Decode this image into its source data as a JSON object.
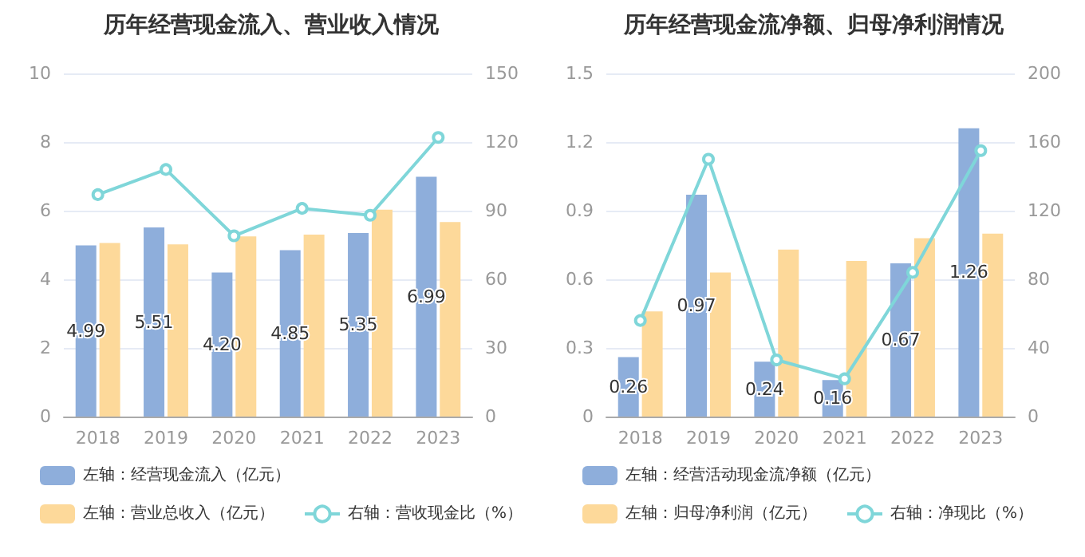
{
  "chart_data": [
    {
      "type": "bar",
      "title": "历年经营现金流入、营业收入情况",
      "categories": [
        "2018",
        "2019",
        "2020",
        "2021",
        "2022",
        "2023"
      ],
      "series": [
        {
          "name": "左轴：经营现金流入（亿元）",
          "color": "#8eaedb",
          "values": [
            4.99,
            5.51,
            4.2,
            4.85,
            5.35,
            6.99
          ],
          "value_labels": [
            "4.99",
            "5.51",
            "4.20",
            "4.85",
            "5.35",
            "6.99"
          ]
        },
        {
          "name": "左轴：营业总收入（亿元）",
          "color": "#fdd99a",
          "values": [
            5.06,
            5.02,
            5.25,
            5.3,
            6.03,
            5.67
          ]
        },
        {
          "name": "右轴：营收现金比（%）",
          "color": "#7fd6d9",
          "type": "line",
          "axis": "y2",
          "marker": "circle",
          "values": [
            97,
            108,
            79,
            91,
            88,
            122
          ]
        }
      ],
      "ylim": [
        0,
        10
      ],
      "yticks": [
        0,
        2,
        4,
        6,
        8,
        10
      ],
      "y2lim": [
        0,
        150
      ],
      "y2ticks": [
        0,
        30,
        60,
        90,
        120,
        150
      ],
      "grid": "y",
      "legend": "bottom left"
    },
    {
      "type": "bar",
      "title": "历年经营现金流净额、归母净利润情况",
      "categories": [
        "2018",
        "2019",
        "2020",
        "2021",
        "2022",
        "2023"
      ],
      "series": [
        {
          "name": "左轴：经营活动现金流净额（亿元）",
          "color": "#8eaedb",
          "values": [
            0.26,
            0.97,
            0.24,
            0.16,
            0.67,
            1.26
          ],
          "value_labels": [
            "0.26",
            "0.97",
            "0.24",
            "0.16",
            "0.67",
            "1.26"
          ]
        },
        {
          "name": "左轴：归母净利润（亿元）",
          "color": "#fdd99a",
          "values": [
            0.46,
            0.63,
            0.73,
            0.68,
            0.78,
            0.8
          ]
        },
        {
          "name": "右轴：净现比（%）",
          "color": "#7fd6d9",
          "type": "line",
          "axis": "y2",
          "marker": "circle",
          "values": [
            56,
            150,
            33,
            22,
            84,
            155
          ]
        }
      ],
      "ylim": [
        0,
        1.5
      ],
      "yticks": [
        0,
        0.3,
        0.6,
        0.9,
        1.2,
        1.5
      ],
      "y2lim": [
        0,
        200
      ],
      "y2ticks": [
        0,
        40,
        80,
        120,
        160,
        200
      ],
      "grid": "y",
      "legend": "bottom left"
    }
  ]
}
